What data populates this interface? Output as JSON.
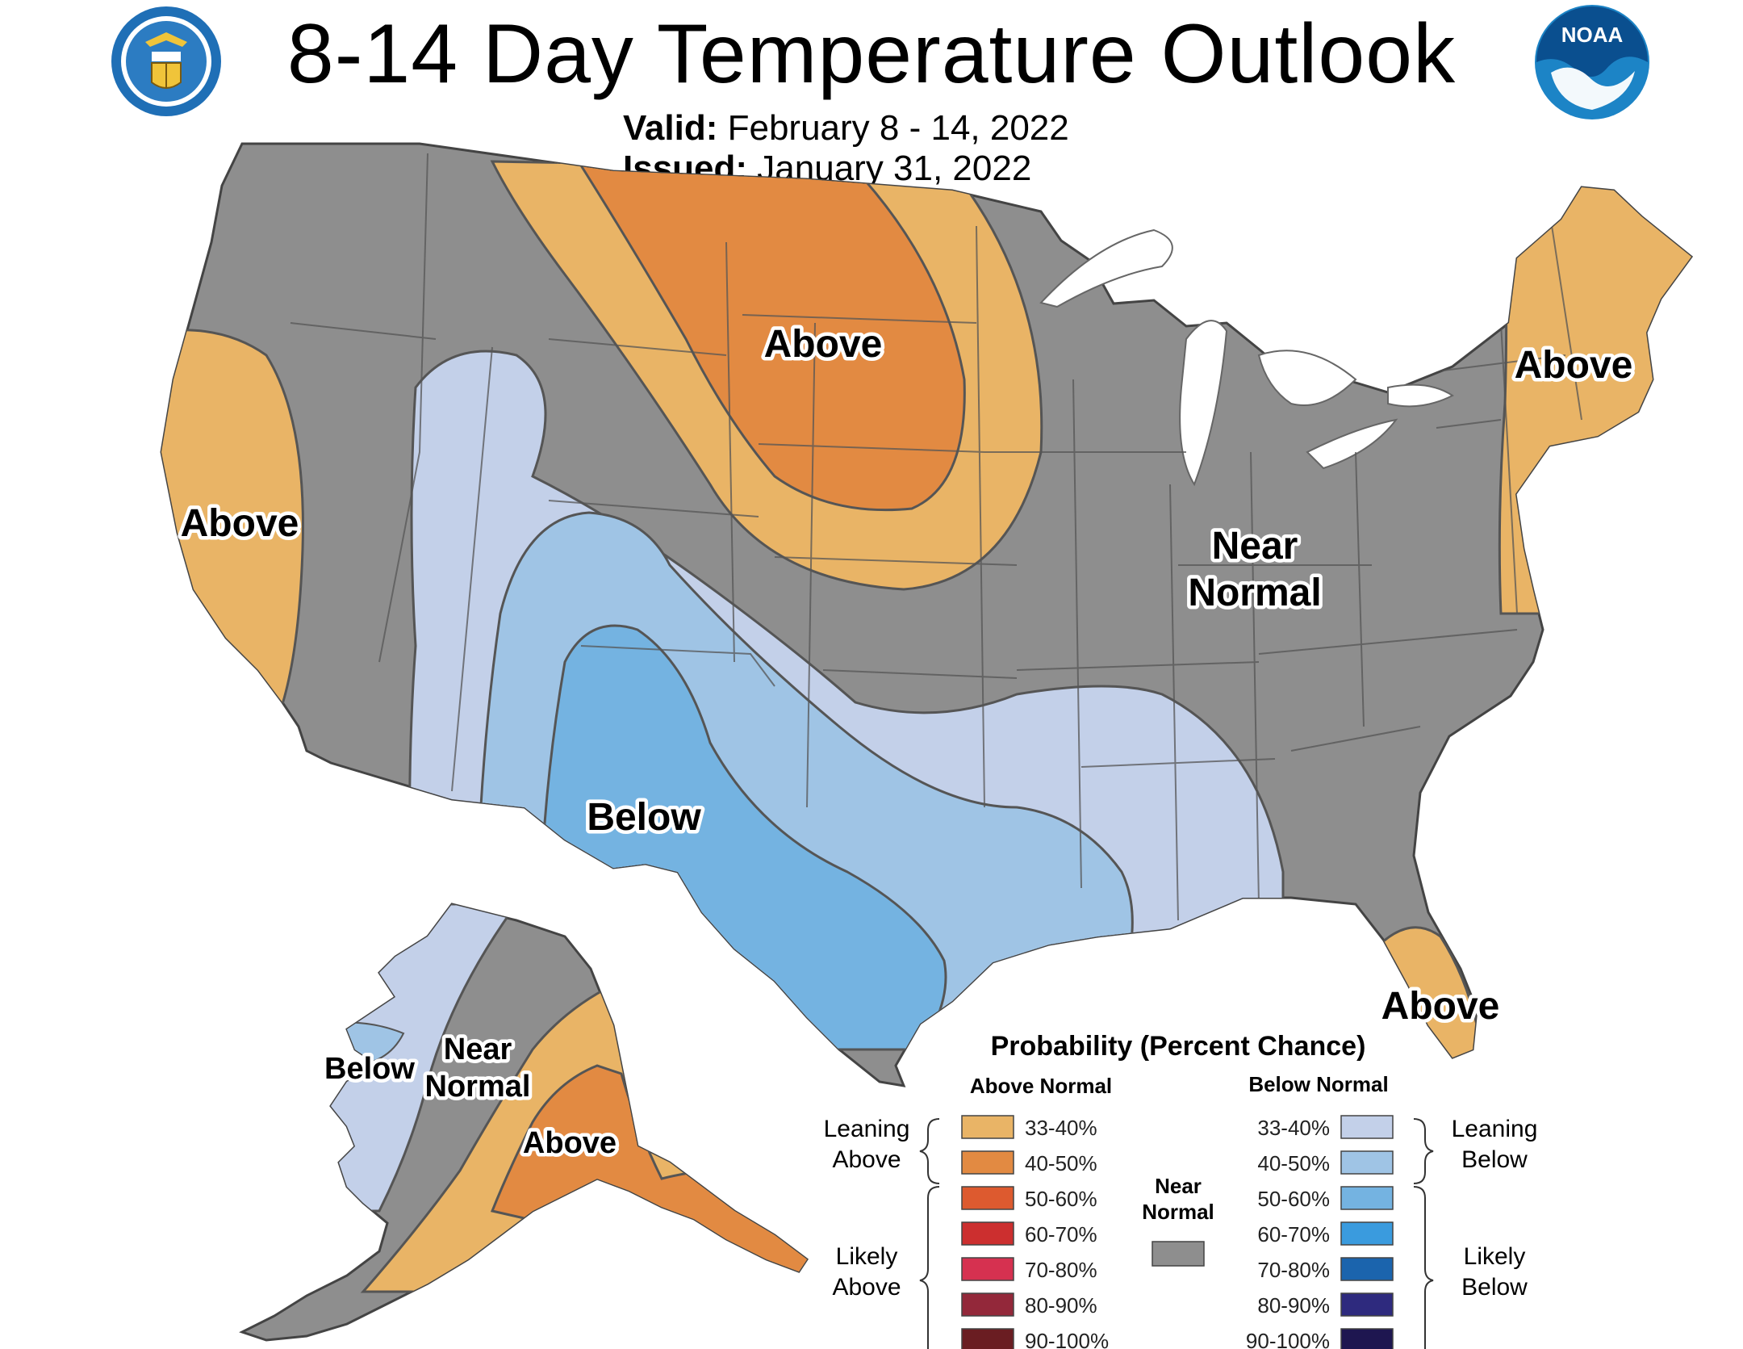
{
  "header": {
    "title": "8-14 Day Temperature Outlook",
    "valid_label": "Valid:",
    "valid_value": "February 8 - 14, 2022",
    "issued_label": "Issued:",
    "issued_value": "January 31, 2022",
    "left_logo": "dept-of-commerce-seal-icon",
    "right_logo": "noaa-logo-icon",
    "noaa_text": "NOAA"
  },
  "map_labels": {
    "conus_above_north_plains": "Above",
    "conus_above_west_coast": "Above",
    "conus_above_northeast": "Above",
    "conus_above_florida": "Above",
    "conus_near_normal_1": "Near",
    "conus_near_normal_2": "Normal",
    "conus_below": "Below",
    "ak_below": "Below",
    "ak_near_1": "Near",
    "ak_near_2": "Normal",
    "ak_above": "Above"
  },
  "legend": {
    "title": "Probability (Percent Chance)",
    "above_header": "Above Normal",
    "below_header": "Below Normal",
    "leaning_above": [
      "Leaning",
      "Above"
    ],
    "likely_above": [
      "Likely",
      "Above"
    ],
    "leaning_below": [
      "Leaning",
      "Below"
    ],
    "likely_below": [
      "Likely",
      "Below"
    ],
    "near_normal": [
      "Near",
      "Normal"
    ],
    "above_bins": [
      {
        "label": "33-40%",
        "color": "#e9b466"
      },
      {
        "label": "40-50%",
        "color": "#e28a42"
      },
      {
        "label": "50-60%",
        "color": "#dd5a2f"
      },
      {
        "label": "60-70%",
        "color": "#cc2f2f"
      },
      {
        "label": "70-80%",
        "color": "#d63150"
      },
      {
        "label": "80-90%",
        "color": "#93283a"
      },
      {
        "label": "90-100%",
        "color": "#6a1d22"
      }
    ],
    "below_bins": [
      {
        "label": "33-40%",
        "color": "#c3d0e9"
      },
      {
        "label": "40-50%",
        "color": "#9fc4e5"
      },
      {
        "label": "50-60%",
        "color": "#74b3e1"
      },
      {
        "label": "60-70%",
        "color": "#3a9bde"
      },
      {
        "label": "70-80%",
        "color": "#1b64ad"
      },
      {
        "label": "80-90%",
        "color": "#2e2a7e"
      },
      {
        "label": "90-100%",
        "color": "#1e1650"
      }
    ],
    "near_normal_color": "#8e8e8e"
  },
  "colors": {
    "land_near_normal": "#8e8e8e",
    "state_border": "#555555",
    "lakes": "#ffffff"
  }
}
